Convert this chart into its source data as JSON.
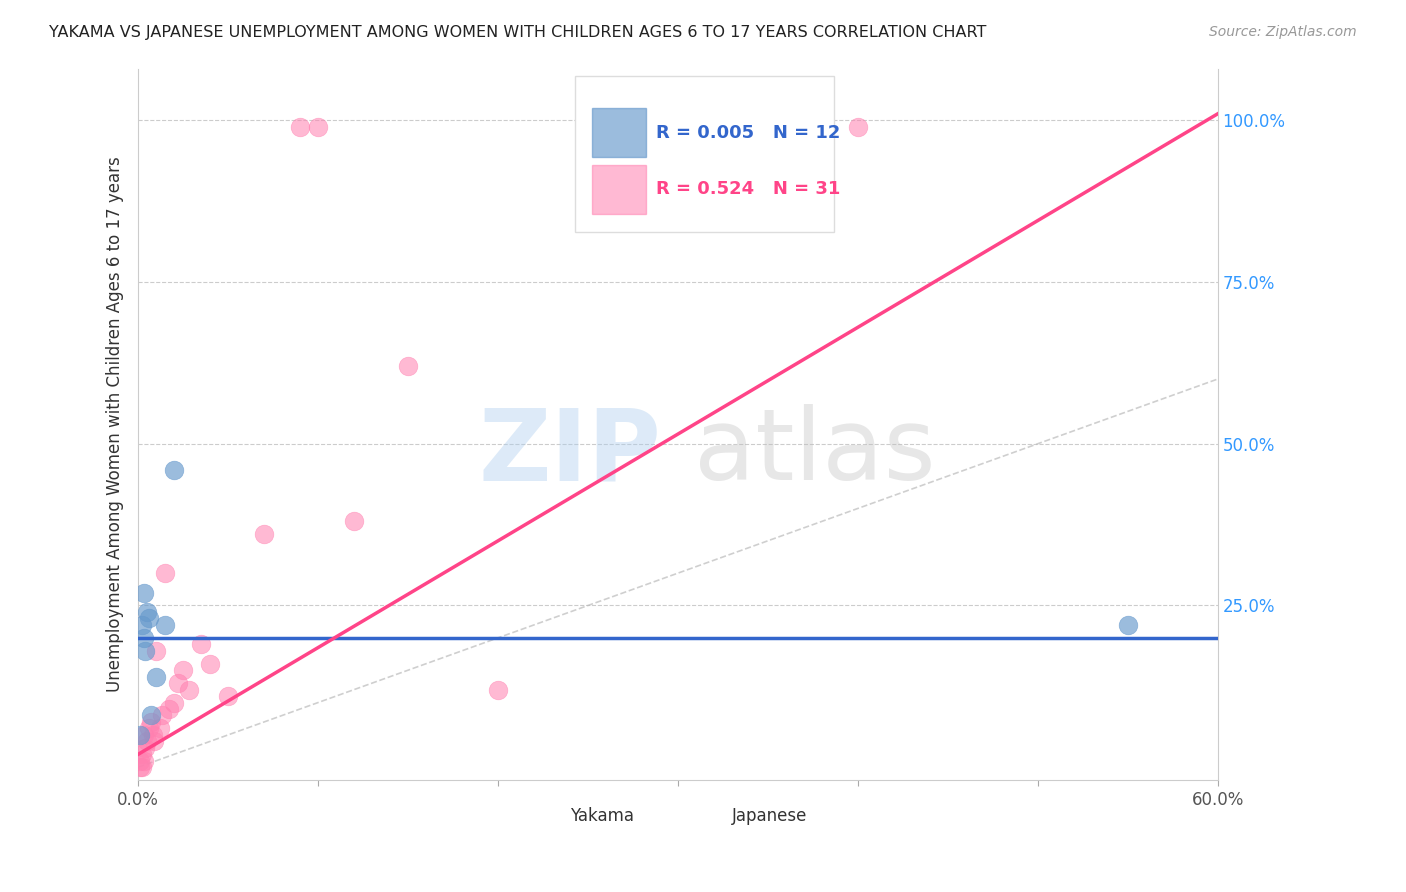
{
  "title": "YAKAMA VS JAPANESE UNEMPLOYMENT AMONG WOMEN WITH CHILDREN AGES 6 TO 17 YEARS CORRELATION CHART",
  "source": "Source: ZipAtlas.com",
  "ylabel": "Unemployment Among Women with Children Ages 6 to 17 years",
  "xlim": [
    0.0,
    0.6
  ],
  "ylim": [
    -0.02,
    1.08
  ],
  "xticks": [
    0.0,
    0.1,
    0.2,
    0.3,
    0.4,
    0.5,
    0.6
  ],
  "xticklabels": [
    "0.0%",
    "",
    "",
    "",
    "",
    "",
    "60.0%"
  ],
  "yticks_right": [
    0.0,
    0.25,
    0.5,
    0.75,
    1.0
  ],
  "yticklabels_right": [
    "",
    "25.0%",
    "50.0%",
    "75.0%",
    "100.0%"
  ],
  "yakama_color": "#6699CC",
  "japanese_color": "#FF80B0",
  "yakama_R": 0.005,
  "yakama_N": 12,
  "japanese_R": 0.524,
  "japanese_N": 31,
  "legend_R_color": "#3366CC",
  "legend_R_japanese_color": "#FF4488",
  "background_color": "#FFFFFF",
  "grid_color": "#CCCCCC",
  "yakama_line_color": "#3366CC",
  "japanese_line_color": "#FF4488",
  "yakama_line_y": 0.2,
  "japanese_line_slope": 1.65,
  "japanese_line_intercept": 0.02,
  "diag_line_color": "#BBBBBB",
  "yakama_scatter_x": [
    0.001,
    0.002,
    0.003,
    0.004,
    0.005,
    0.006,
    0.007,
    0.01,
    0.015,
    0.02,
    0.55,
    0.003
  ],
  "yakama_scatter_y": [
    0.05,
    0.22,
    0.2,
    0.18,
    0.24,
    0.23,
    0.08,
    0.14,
    0.22,
    0.46,
    0.22,
    0.27
  ],
  "japanese_scatter_x": [
    0.001,
    0.001,
    0.002,
    0.002,
    0.003,
    0.003,
    0.004,
    0.005,
    0.006,
    0.007,
    0.008,
    0.009,
    0.01,
    0.012,
    0.013,
    0.015,
    0.017,
    0.02,
    0.022,
    0.025,
    0.028,
    0.035,
    0.04,
    0.05,
    0.07,
    0.09,
    0.1,
    0.12,
    0.15,
    0.2,
    0.4
  ],
  "japanese_scatter_y": [
    0.0,
    0.01,
    0.0,
    0.02,
    0.01,
    0.05,
    0.03,
    0.04,
    0.06,
    0.07,
    0.05,
    0.04,
    0.18,
    0.06,
    0.08,
    0.3,
    0.09,
    0.1,
    0.13,
    0.15,
    0.12,
    0.19,
    0.16,
    0.11,
    0.36,
    0.99,
    0.99,
    0.38,
    0.62,
    0.12,
    0.99
  ]
}
